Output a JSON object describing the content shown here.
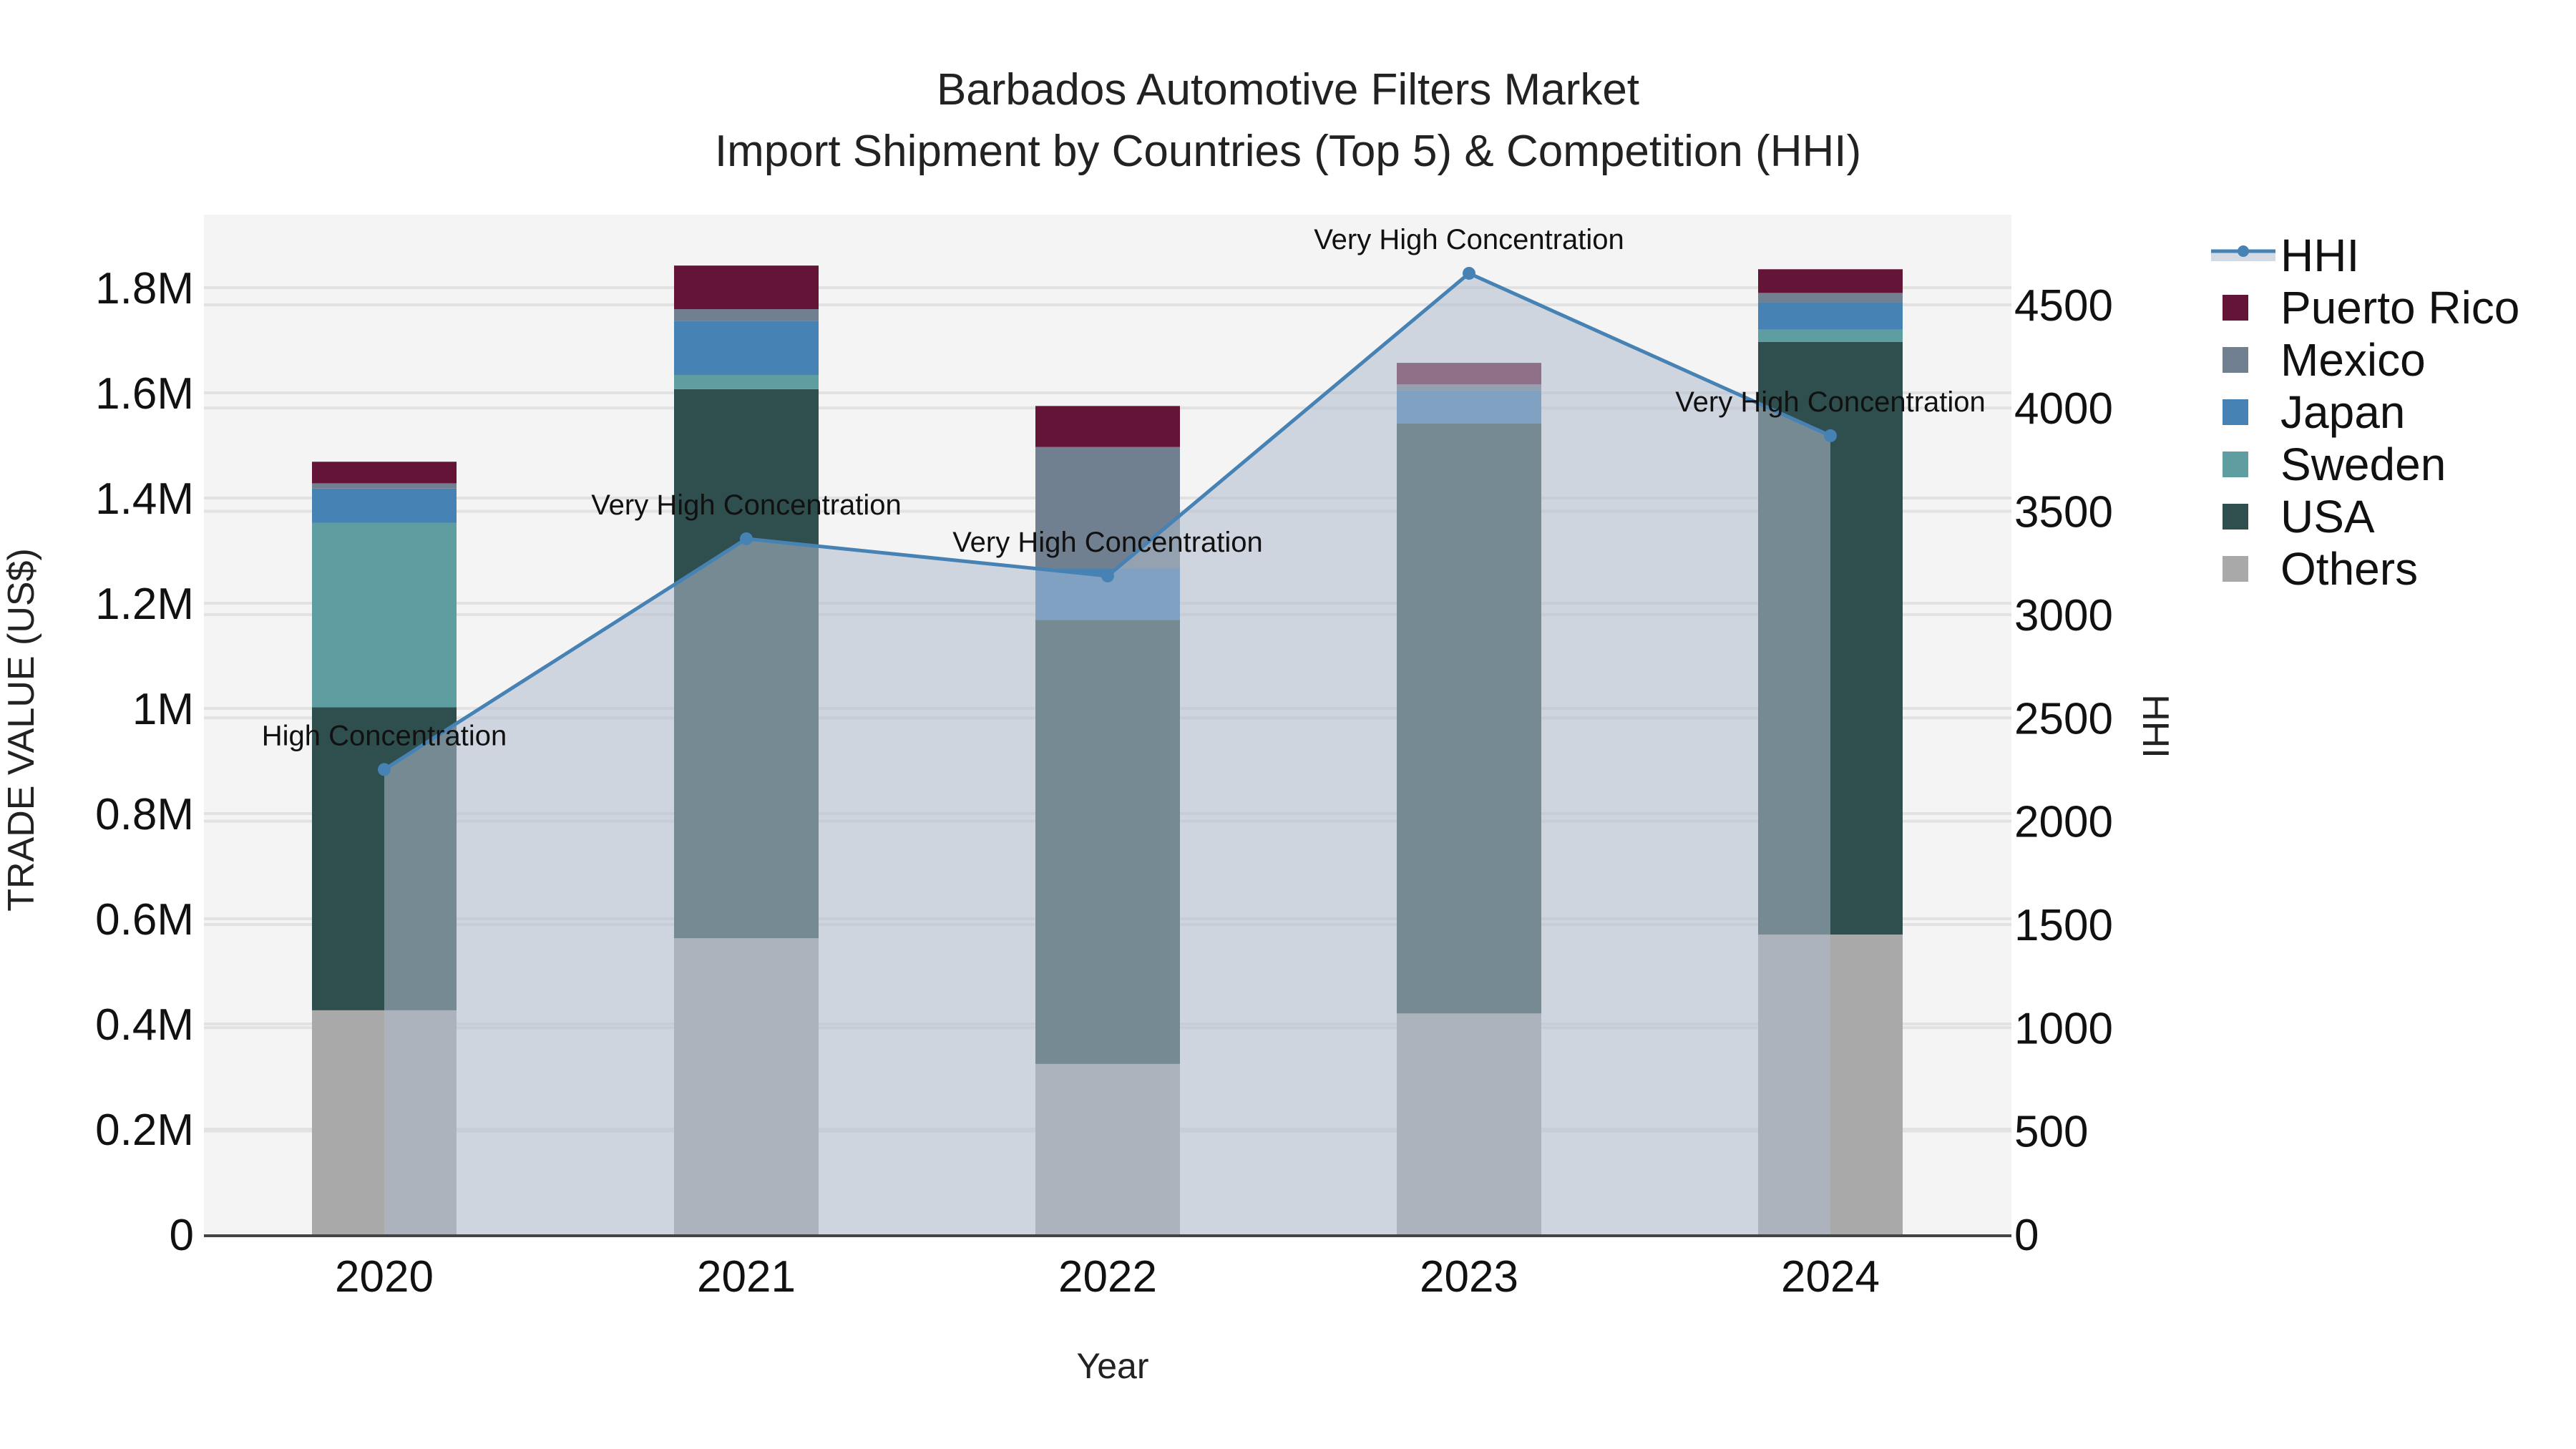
{
  "title": {
    "line1": "Barbados Automotive Filters Market",
    "line2": "Import Shipment by Countries (Top 5) & Competition (HHI)"
  },
  "axes": {
    "x_label": "Year",
    "y_left_label": "TRADE VALUE (US$)",
    "y_right_label": "HHI",
    "y_left_ticks": [
      "0",
      "0.2M",
      "0.4M",
      "0.6M",
      "0.8M",
      "1M",
      "1.2M",
      "1.4M",
      "1.6M",
      "1.8M"
    ],
    "y_right_ticks": [
      "0",
      "500",
      "1000",
      "1500",
      "2000",
      "2500",
      "3000",
      "3500",
      "4000",
      "4500"
    ]
  },
  "legend": [
    {
      "name": "HHI",
      "type": "line",
      "color": "#4682b4"
    },
    {
      "name": "Puerto Rico",
      "type": "bar",
      "color": "#641436"
    },
    {
      "name": "Mexico",
      "type": "bar",
      "color": "#708090"
    },
    {
      "name": "Japan",
      "type": "bar",
      "color": "#4682b4"
    },
    {
      "name": "Sweden",
      "type": "bar",
      "color": "#5f9ea0"
    },
    {
      "name": "USA",
      "type": "bar",
      "color": "#2f4f4f"
    },
    {
      "name": "Others",
      "type": "bar",
      "color": "#a9a9a9"
    }
  ],
  "colors": {
    "plot_bg": "#f4f4f4",
    "grid": "#e2e2e2",
    "hhi_line": "#4682b4",
    "hhi_fill": "rgba(176,188,204,0.55)",
    "axis_line": "#444444"
  },
  "chart_data": {
    "type": "bar",
    "title": "Barbados Automotive Filters Market — Import Shipment by Countries (Top 5) & Competition (HHI)",
    "xlabel": "Year",
    "ylabel": "TRADE VALUE (US$)",
    "y2label": "HHI",
    "categories": [
      "2020",
      "2021",
      "2022",
      "2023",
      "2024"
    ],
    "stacked": true,
    "ylim": [
      0,
      1930000
    ],
    "y2lim": [
      0,
      4950
    ],
    "grid": true,
    "legend_position": "right",
    "series": [
      {
        "name": "Others",
        "color": "#a9a9a9",
        "values": [
          426000,
          563000,
          324000,
          420000,
          570000
        ]
      },
      {
        "name": "USA",
        "color": "#2f4f4f",
        "values": [
          576000,
          1044000,
          844000,
          1122000,
          1127000
        ]
      },
      {
        "name": "Sweden",
        "color": "#5f9ea0",
        "values": [
          351000,
          27000,
          0,
          0,
          23000
        ]
      },
      {
        "name": "Japan",
        "color": "#4682b4",
        "values": [
          65000,
          103000,
          98000,
          63000,
          52000
        ]
      },
      {
        "name": "Mexico",
        "color": "#708090",
        "values": [
          10000,
          22000,
          231000,
          11000,
          18000
        ]
      },
      {
        "name": "Puerto Rico",
        "color": "#641436",
        "values": [
          41000,
          83000,
          78000,
          41000,
          45000
        ]
      }
    ],
    "line_series": {
      "name": "HHI",
      "axis": "right",
      "type": "line+area",
      "color": "#4682b4",
      "values": [
        2250,
        3367,
        3187,
        4652,
        3866
      ],
      "annotations": [
        "High Concentration",
        "Very High Concentration",
        "Very High Concentration",
        "Very High Concentration",
        "Very High Concentration"
      ]
    }
  }
}
